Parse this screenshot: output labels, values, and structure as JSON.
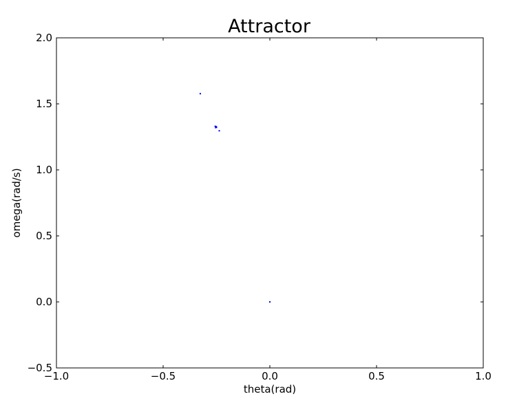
{
  "chart_data": {
    "type": "scatter",
    "title": "Attractor",
    "xlabel": "theta(rad)",
    "ylabel": "omega(rad/s)",
    "xlim": [
      -1.0,
      1.0
    ],
    "ylim": [
      -0.5,
      2.0
    ],
    "xticks": [
      -1.0,
      -0.5,
      0.0,
      0.5,
      1.0
    ],
    "yticks": [
      -0.5,
      0.0,
      0.5,
      1.0,
      1.5,
      2.0
    ],
    "xtick_labels": [
      "−1.0",
      "−0.5",
      "0.0",
      "0.5",
      "1.0"
    ],
    "ytick_labels": [
      "−0.5",
      "0.0",
      "0.5",
      "1.0",
      "1.5",
      "2.0"
    ],
    "grid": false,
    "marker_color": "#0000ff",
    "series": [
      {
        "points": [
          {
            "x": 0.0,
            "y": 0.0
          },
          {
            "x": -0.326,
            "y": 1.577
          },
          {
            "x": -0.256,
            "y": 1.33
          },
          {
            "x": -0.253,
            "y": 1.325
          },
          {
            "x": -0.25,
            "y": 1.322
          },
          {
            "x": -0.254,
            "y": 1.32
          },
          {
            "x": -0.251,
            "y": 1.327
          },
          {
            "x": -0.237,
            "y": 1.296
          }
        ]
      }
    ]
  }
}
